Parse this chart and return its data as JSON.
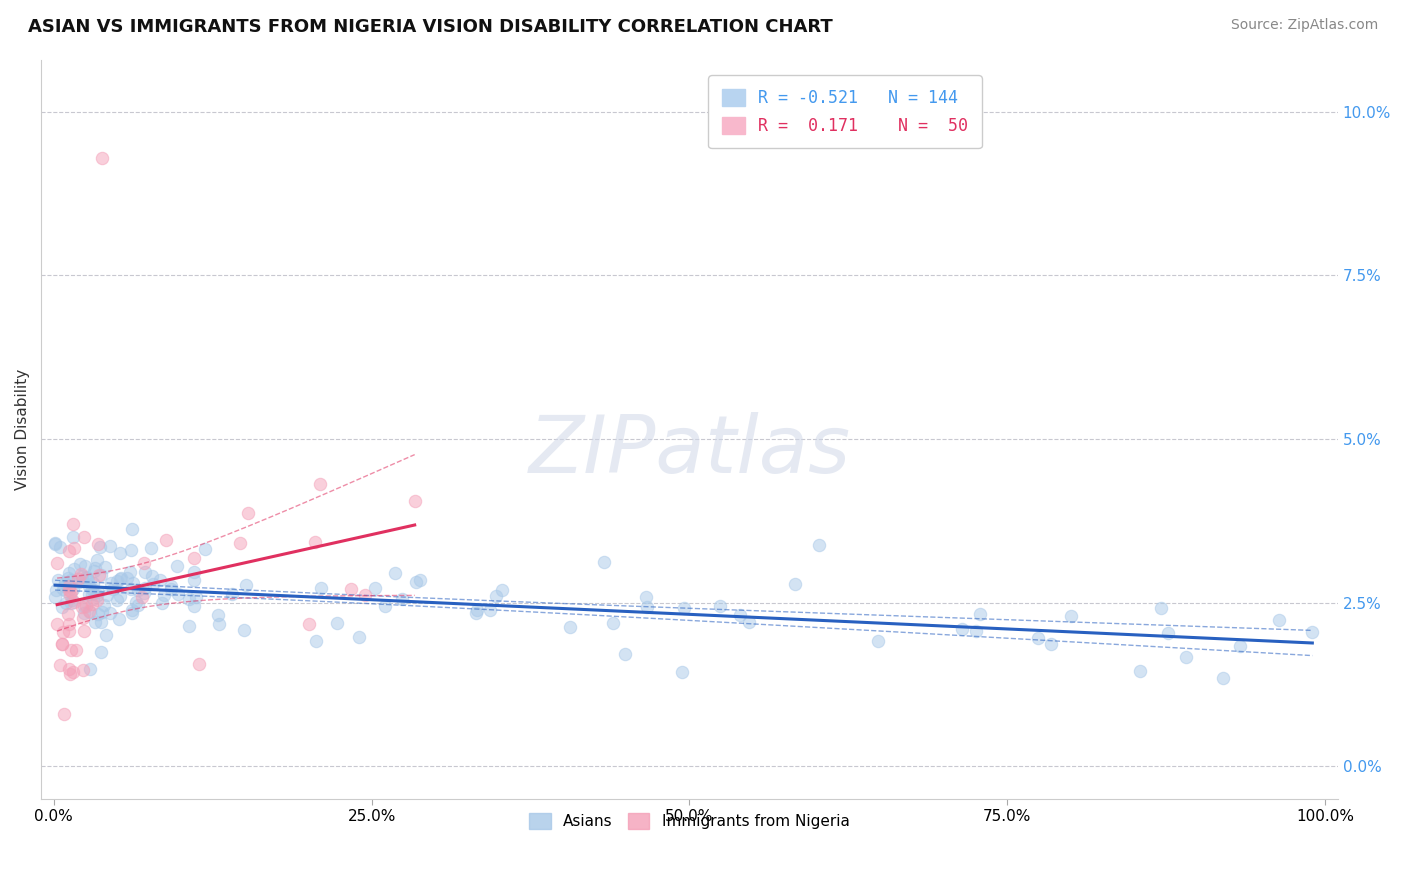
{
  "title": "ASIAN VS IMMIGRANTS FROM NIGERIA VISION DISABILITY CORRELATION CHART",
  "source": "Source: ZipAtlas.com",
  "ylabel": "Vision Disability",
  "xlim": [
    -0.01,
    1.01
  ],
  "ylim": [
    -0.005,
    0.108
  ],
  "yticks": [
    0.0,
    0.025,
    0.05,
    0.075,
    0.1
  ],
  "ytick_labels": [
    "0.0%",
    "2.5%",
    "5.0%",
    "7.5%",
    "10.0%"
  ],
  "xticks": [
    0.0,
    0.25,
    0.5,
    0.75,
    1.0
  ],
  "xtick_labels": [
    "0.0%",
    "25.0%",
    "50.0%",
    "75.0%",
    "100.0%"
  ],
  "blue_color": "#a8c8e8",
  "pink_color": "#f4a0b8",
  "blue_line_color": "#2860c0",
  "pink_line_color": "#e03060",
  "blue_scatter_alpha": 0.5,
  "pink_scatter_alpha": 0.5,
  "marker_size": 80,
  "watermark": "ZIPatlas",
  "background_color": "#ffffff",
  "grid_color": "#c8c8d0",
  "title_fontsize": 13,
  "axis_label_fontsize": 11,
  "tick_fontsize": 11,
  "source_fontsize": 10,
  "tick_color": "#4499ee",
  "legend_R_blue": "-0.521",
  "legend_N_blue": "144",
  "legend_R_pink": "0.171",
  "legend_N_pink": "50"
}
